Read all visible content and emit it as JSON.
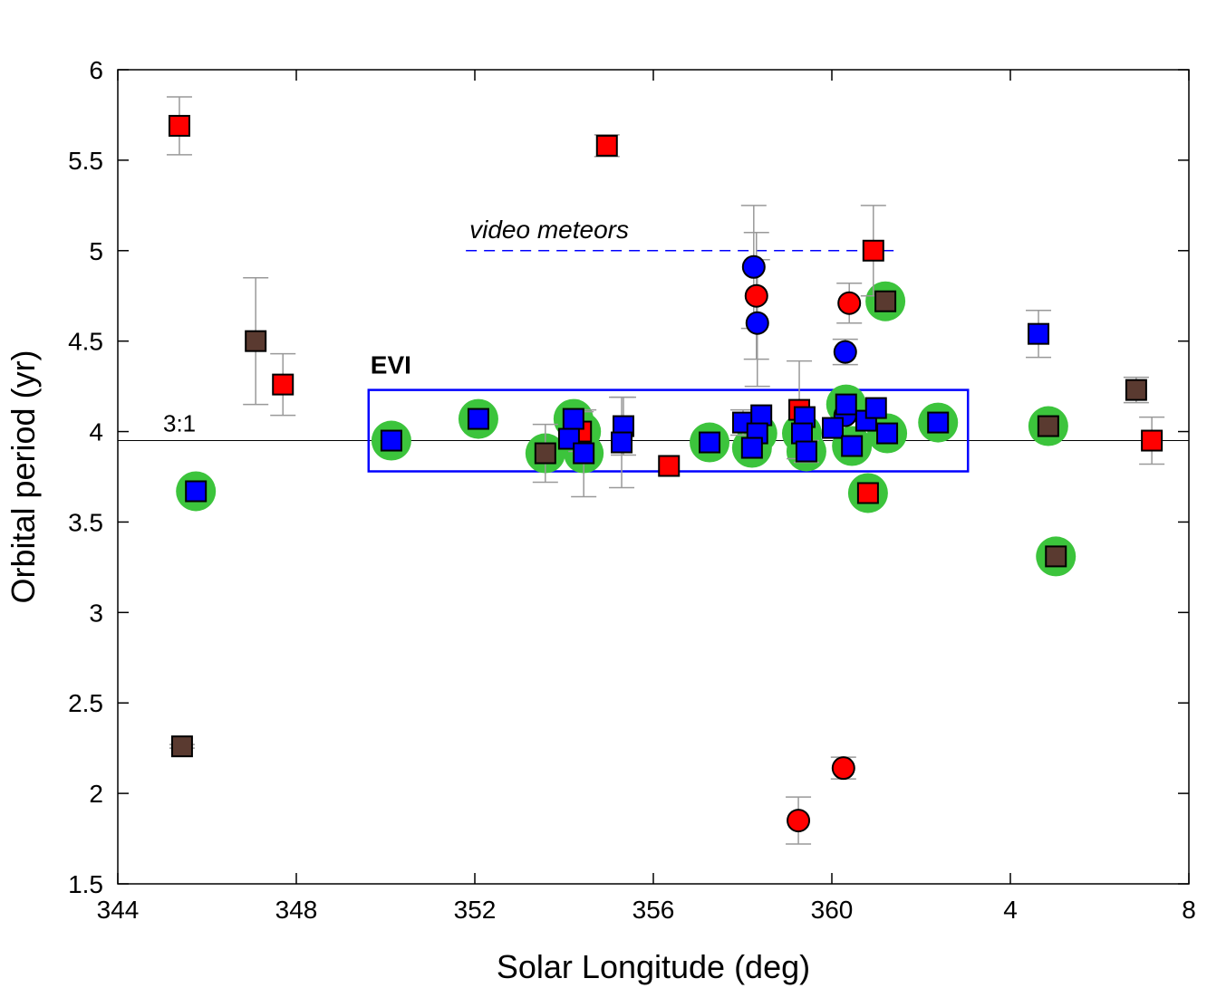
{
  "chart_data": {
    "type": "scatter",
    "xlabel": "Solar Longitude (deg)",
    "ylabel": "Orbital period (yr)",
    "xlim": [
      344,
      368
    ],
    "ylim": [
      1.5,
      6
    ],
    "xticks": [
      344,
      348,
      352,
      356,
      360,
      {
        "value": 364,
        "label": "4"
      },
      {
        "value": 368,
        "label": "8"
      }
    ],
    "yticks": [
      1.5,
      2,
      2.5,
      3,
      3.5,
      4,
      4.5,
      5,
      5.5,
      6
    ],
    "halo_color": "#3cc43c",
    "error_color": "#999999",
    "series": [
      {
        "marker": "square",
        "color": "#ff0000",
        "x": [
          345.38,
          354.96,
          347.7,
          354.38,
          356.35,
          359.27,
          360.93,
          360.81,
          367.17
        ],
        "values": [
          5.69,
          5.58,
          4.26,
          4.0,
          3.81,
          4.12,
          5.0,
          3.66,
          3.95
        ],
        "errors": [
          0.16,
          0.06,
          0.17,
          0.11,
          null,
          0.27,
          0.25,
          null,
          0.13
        ],
        "halo": [
          false,
          false,
          false,
          true,
          false,
          false,
          false,
          true,
          false
        ]
      },
      {
        "marker": "circle",
        "color": "#ff0000",
        "x": [
          358.31,
          360.39,
          359.25,
          360.26
        ],
        "values": [
          4.75,
          4.71,
          1.85,
          2.14
        ],
        "errors": [
          0.35,
          0.11,
          0.13,
          0.06
        ],
        "halo": [
          false,
          false,
          false,
          false
        ]
      },
      {
        "marker": "circle",
        "color": "#0000ff",
        "x": [
          358.25,
          358.33,
          360.3,
          360.3
        ],
        "values": [
          4.91,
          4.6,
          4.44,
          4.09
        ],
        "errors": [
          0.34,
          0.35,
          0.07,
          null
        ],
        "halo": [
          false,
          false,
          false,
          false
        ]
      },
      {
        "marker": "square",
        "color": "#5a3a30",
        "x": [
          347.09,
          345.44,
          353.58,
          361.2,
          364.85,
          365.02,
          366.82
        ],
        "values": [
          4.5,
          2.26,
          3.88,
          4.72,
          4.03,
          3.31,
          4.23
        ],
        "errors": [
          0.35,
          0.01,
          0.16,
          null,
          null,
          null,
          0.07
        ],
        "halo": [
          false,
          false,
          true,
          true,
          true,
          true,
          false
        ]
      },
      {
        "marker": "square",
        "color": "#0000ff",
        "x": [
          345.75,
          350.13,
          352.08,
          354.21,
          354.11,
          354.44,
          355.33,
          355.29,
          357.26,
          358.01,
          358.42,
          358.33,
          358.21,
          359.39,
          359.33,
          359.43,
          360.02,
          360.32,
          360.45,
          360.77,
          360.99,
          361.24,
          362.38,
          364.63
        ],
        "values": [
          3.67,
          3.95,
          4.07,
          4.07,
          3.96,
          3.88,
          4.03,
          3.94,
          3.94,
          4.05,
          4.09,
          3.99,
          3.91,
          4.08,
          3.99,
          3.89,
          4.02,
          4.15,
          3.92,
          4.06,
          4.13,
          3.99,
          4.05,
          4.54
        ],
        "errors": [
          null,
          null,
          null,
          null,
          null,
          0.24,
          0.16,
          0.25,
          null,
          0.07,
          null,
          null,
          null,
          null,
          null,
          0.06,
          null,
          null,
          null,
          null,
          null,
          null,
          null,
          0.13
        ],
        "halo": [
          true,
          true,
          true,
          true,
          false,
          true,
          false,
          false,
          true,
          false,
          false,
          true,
          true,
          false,
          true,
          true,
          false,
          true,
          true,
          false,
          false,
          true,
          true,
          false
        ]
      }
    ],
    "reference_line": {
      "y": 3.95,
      "label": "3:1",
      "color": "#000000"
    },
    "region": {
      "x": [
        349.62,
        363.05
      ],
      "y": [
        3.78,
        4.23
      ],
      "label": "EVI",
      "color": "#0000ff"
    },
    "dashed_line": {
      "x": [
        351.8,
        361.5
      ],
      "y": 5.0,
      "label": "video meteors",
      "color": "#0000ff"
    }
  }
}
